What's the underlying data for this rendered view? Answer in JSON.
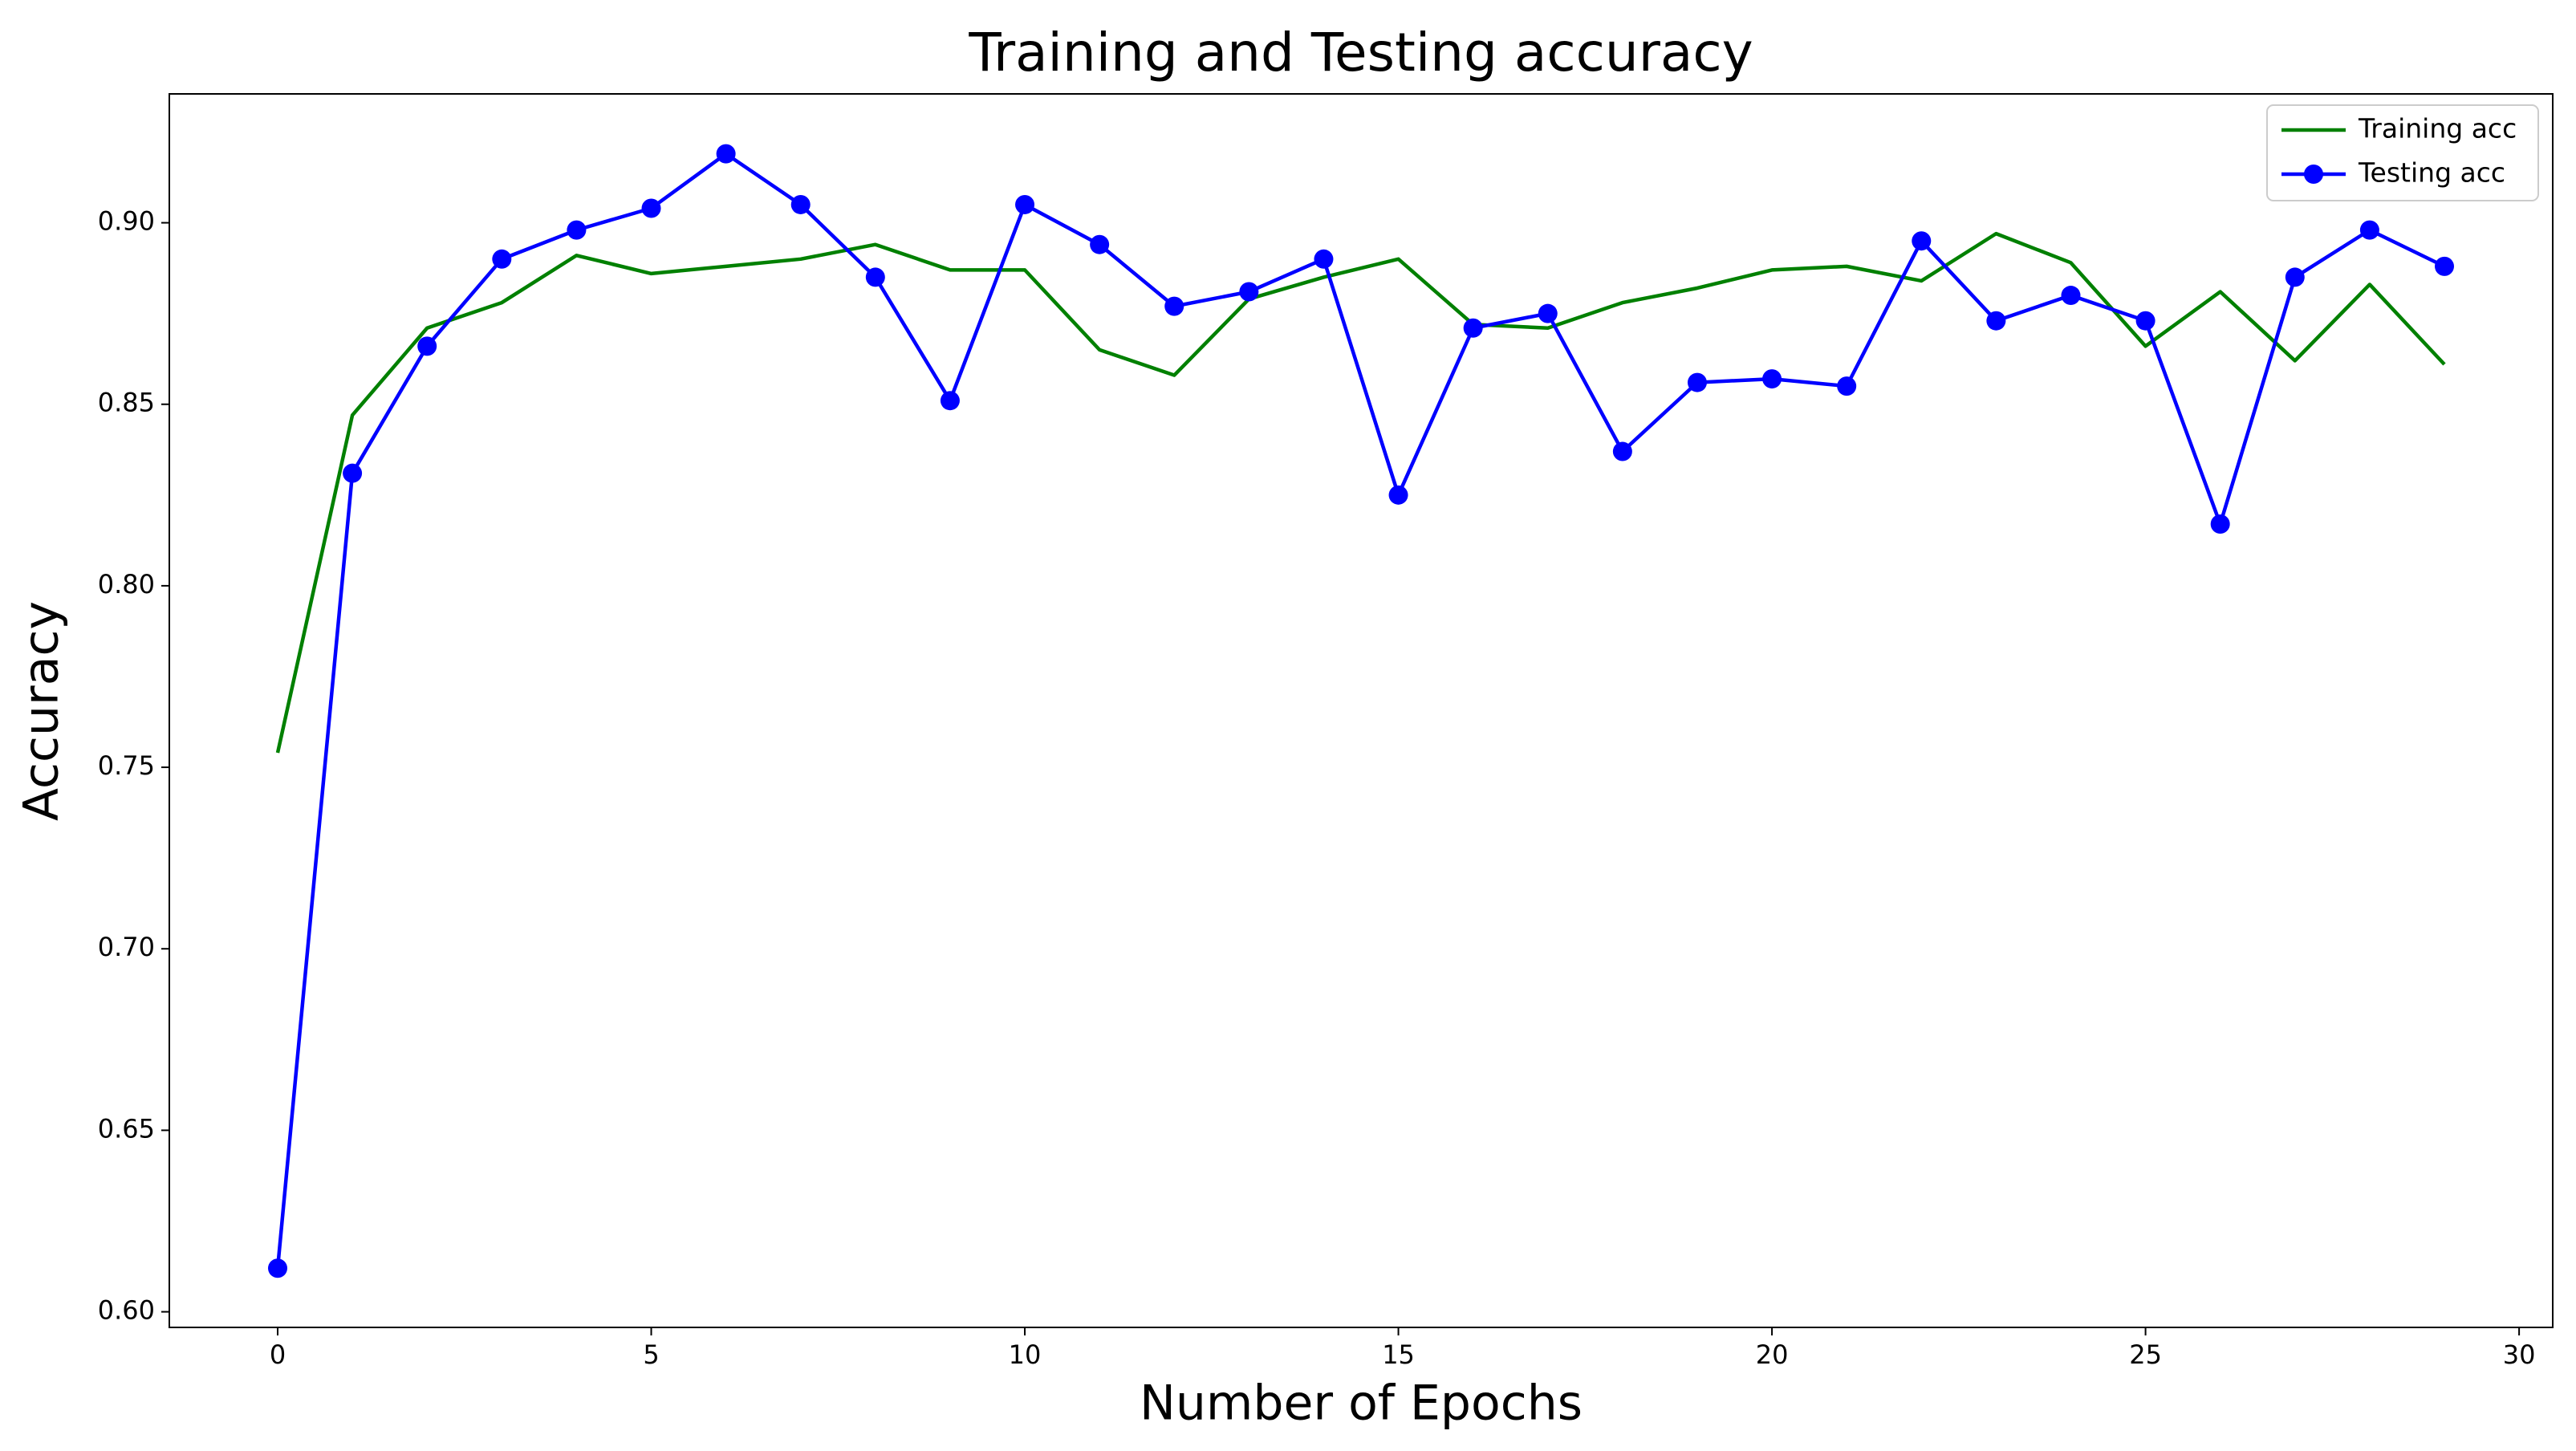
{
  "chart_data": {
    "type": "line",
    "title": "Training and Testing accuracy",
    "xlabel": "Number of Epochs",
    "ylabel": "Accuracy",
    "x": [
      0,
      1,
      2,
      3,
      4,
      5,
      6,
      7,
      8,
      9,
      10,
      11,
      12,
      13,
      14,
      15,
      16,
      17,
      18,
      19,
      20,
      21,
      22,
      23,
      24,
      25,
      26,
      27,
      28,
      29
    ],
    "series": [
      {
        "name": "Training acc",
        "color": "#008000",
        "marker": null,
        "values": [
          0.754,
          0.847,
          0.871,
          0.878,
          0.891,
          0.886,
          0.888,
          0.89,
          0.894,
          0.887,
          0.887,
          0.865,
          0.858,
          0.879,
          0.885,
          0.89,
          0.872,
          0.871,
          0.878,
          0.882,
          0.887,
          0.888,
          0.884,
          0.897,
          0.889,
          0.866,
          0.881,
          0.862,
          0.883,
          0.861
        ]
      },
      {
        "name": "Testing acc",
        "color": "#0000ff",
        "marker": "o",
        "values": [
          0.612,
          0.831,
          0.866,
          0.89,
          0.898,
          0.904,
          0.919,
          0.905,
          0.885,
          0.851,
          0.905,
          0.894,
          0.877,
          0.881,
          0.89,
          0.825,
          0.871,
          0.875,
          0.837,
          0.856,
          0.857,
          0.855,
          0.895,
          0.873,
          0.88,
          0.873,
          0.817,
          0.885,
          0.898,
          0.888
        ]
      }
    ],
    "xlim": [
      -1.45,
      30.45
    ],
    "xticks": [
      0,
      5,
      10,
      15,
      20,
      25,
      30
    ],
    "ylim": [
      0.5957,
      0.9355
    ],
    "yticks": [
      {
        "value": 0.6,
        "label": "0.60"
      },
      {
        "value": 0.65,
        "label": "0.65"
      },
      {
        "value": 0.7,
        "label": "0.70"
      },
      {
        "value": 0.75,
        "label": "0.75"
      },
      {
        "value": 0.8,
        "label": "0.80"
      },
      {
        "value": 0.85,
        "label": "0.85"
      },
      {
        "value": 0.9,
        "label": "0.90"
      }
    ],
    "grid": false,
    "legend": "upper right"
  }
}
